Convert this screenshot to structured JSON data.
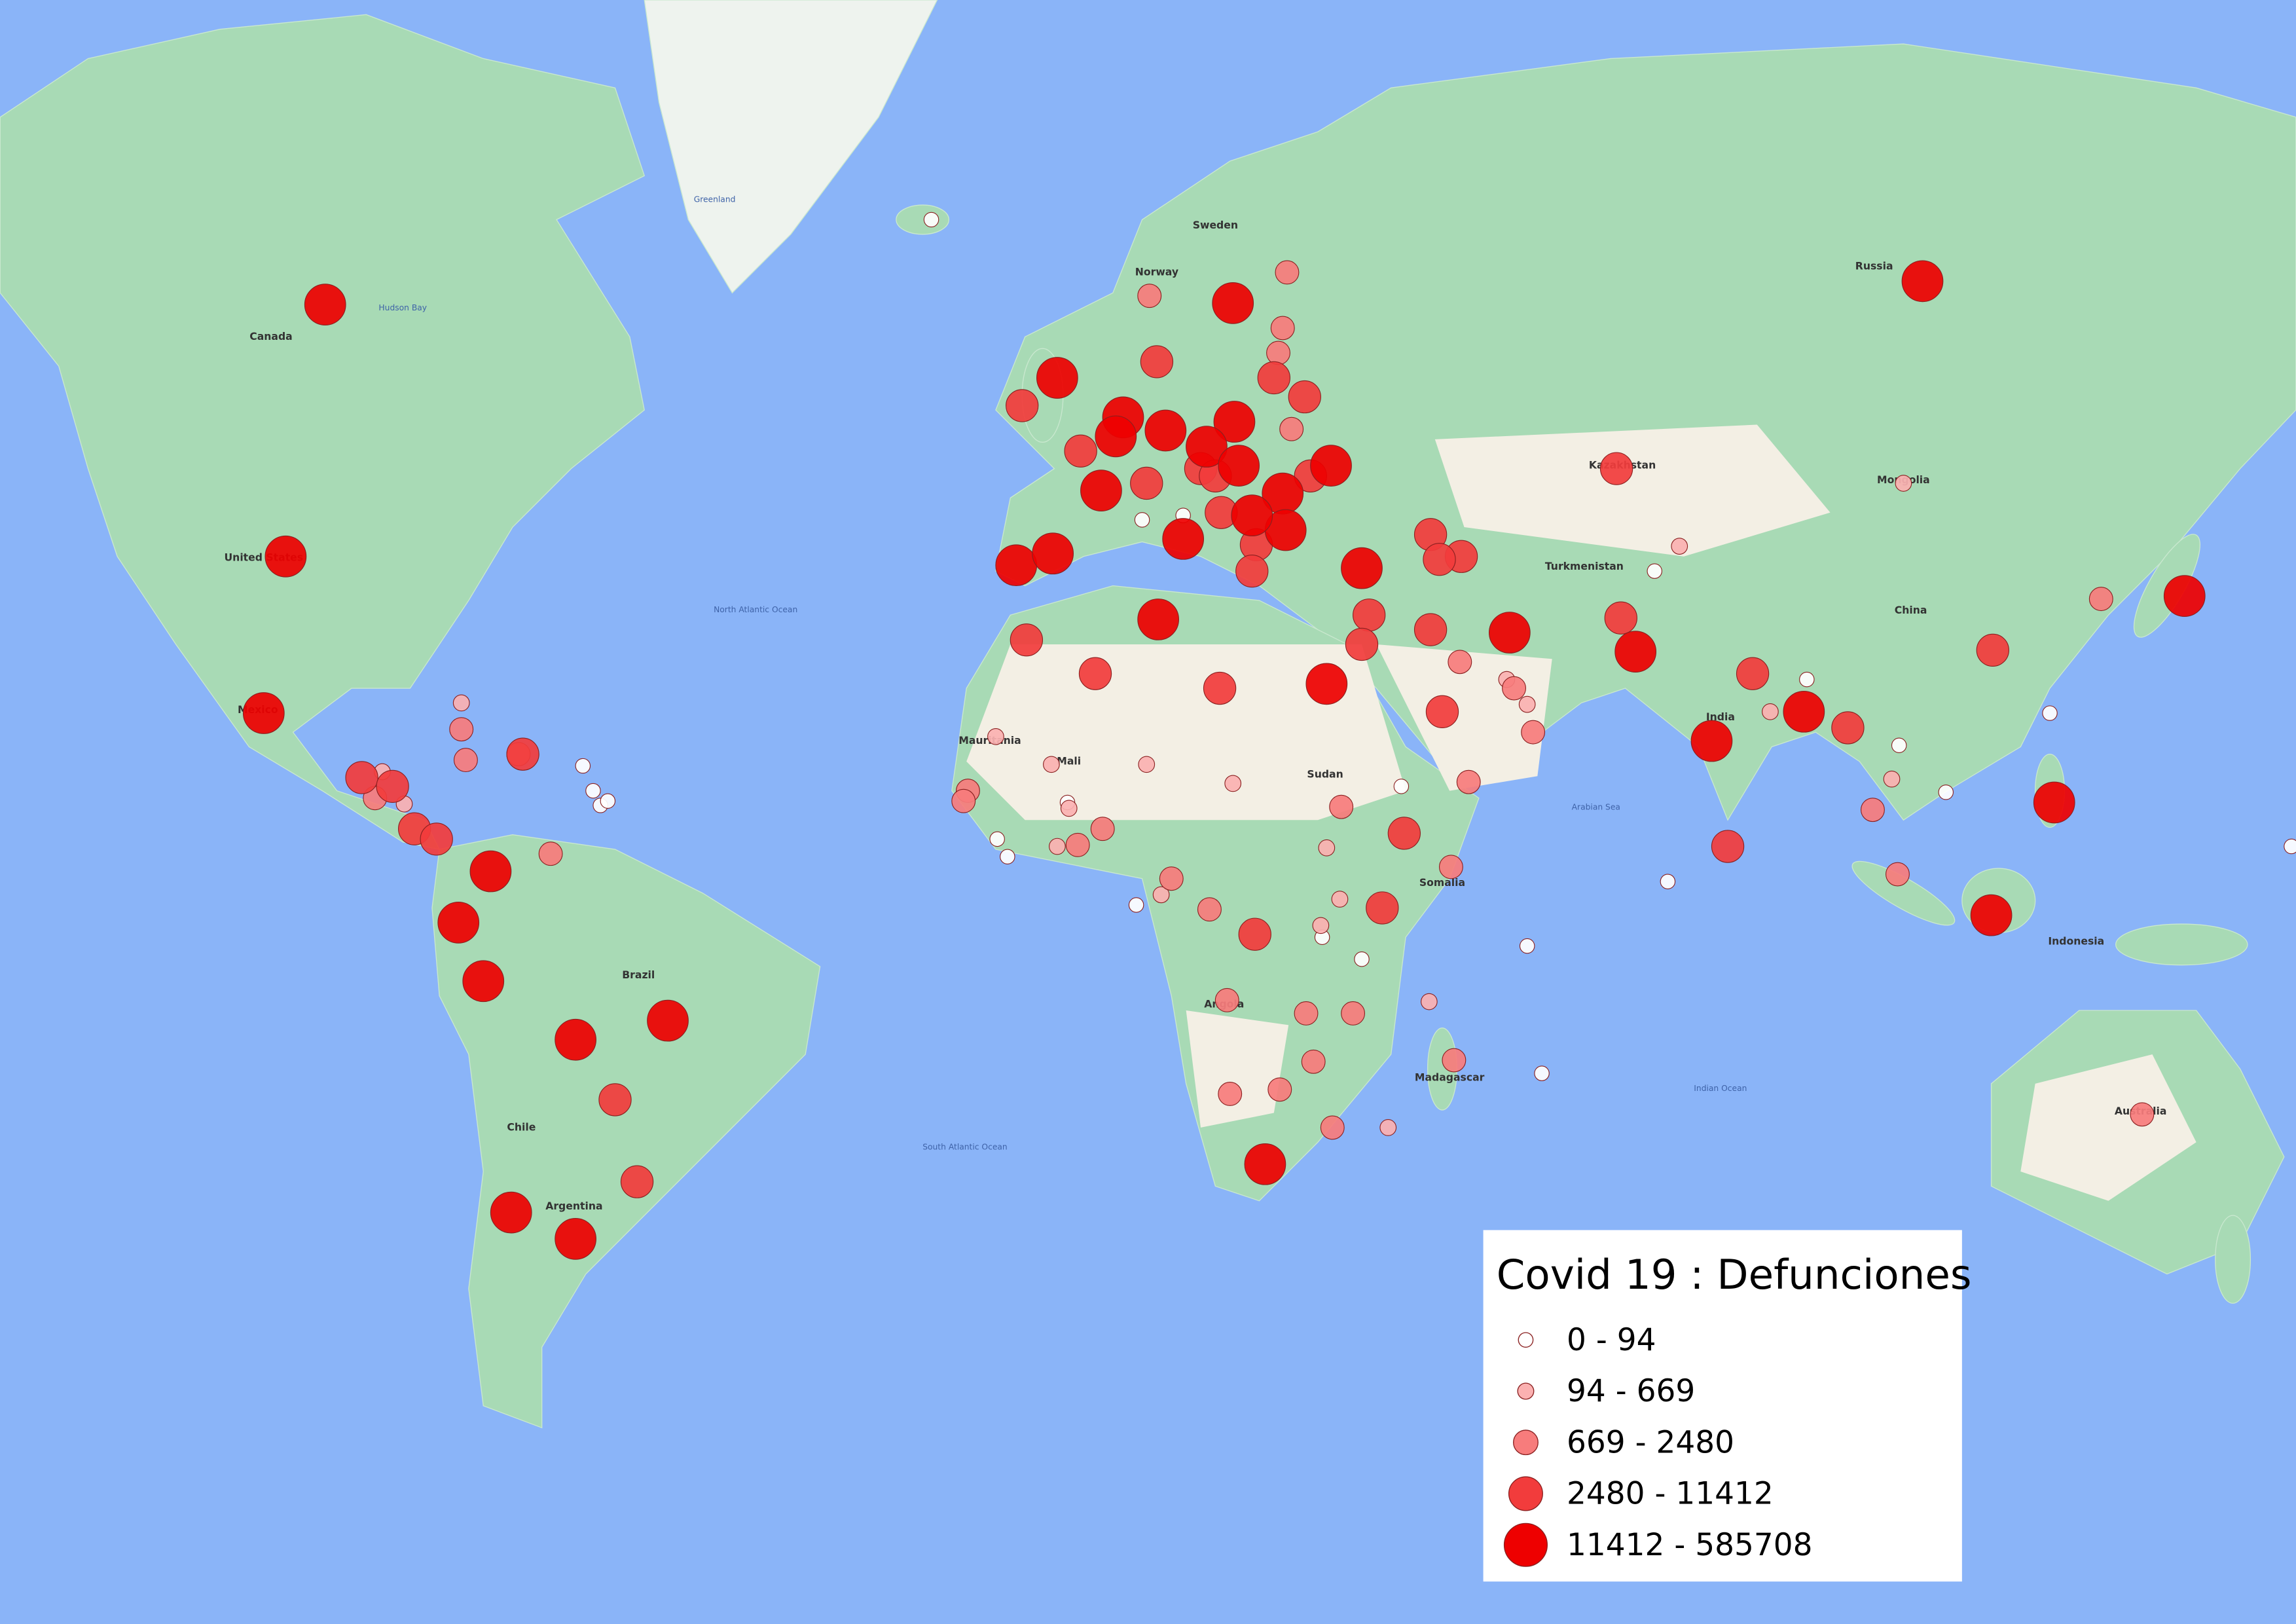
{
  "map": {
    "labels": [
      "Greenland",
      "Canada",
      "United States",
      "Mexico",
      "Brazil",
      "Argentina",
      "Chile",
      "Russia",
      "China",
      "India",
      "Mongolia",
      "Kazakhstan",
      "Turkmenistan",
      "Australia",
      "Indonesia",
      "Sudan",
      "Mali",
      "Mauritania",
      "Angola",
      "Madagascar",
      "Somalia",
      "Norway",
      "Sweden",
      "Hudson Bay",
      "North Atlantic Ocean",
      "South Atlantic Ocean",
      "Indian Ocean",
      "Arabian Sea"
    ],
    "legend": {
      "title": "Covid 19 : Defunciones",
      "classes": [
        {
          "label": "0 - 94",
          "color": "#ffffff"
        },
        {
          "label": "94 - 669",
          "color": "#fbb1b1"
        },
        {
          "label": "669 - 2480",
          "color": "#f77c7c"
        },
        {
          "label": "2480 - 11412",
          "color": "#f23c3c"
        },
        {
          "label": "11412 - 585708",
          "color": "#ee0000"
        }
      ]
    }
  }
}
